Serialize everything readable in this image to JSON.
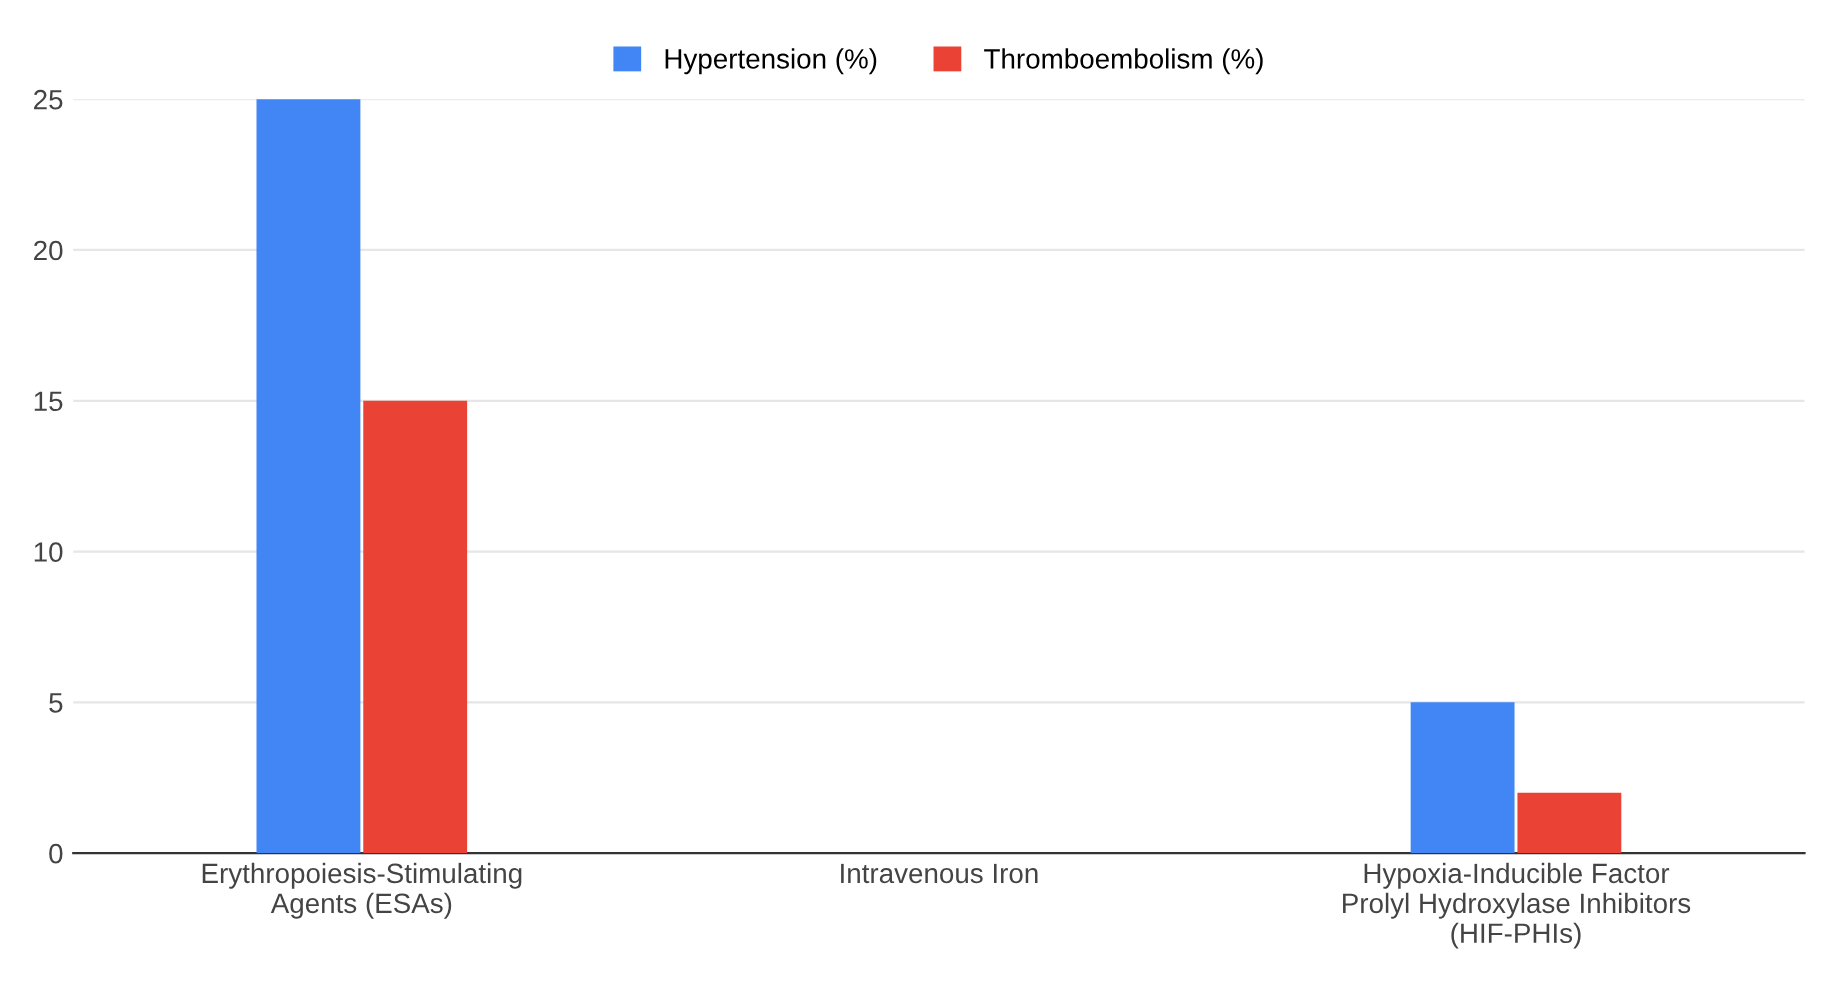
{
  "chart_data": {
    "type": "bar",
    "categories": [
      "Erythropoiesis-Stimulating\nAgents (ESAs)",
      "Intravenous Iron",
      "Hypoxia-Inducible Factor\nProlyl Hydroxylase Inhibitors\n(HIF-PHIs)"
    ],
    "series": [
      {
        "name": "Hypertension (%)",
        "color": "#4285f4",
        "values": [
          25,
          0,
          5
        ]
      },
      {
        "name": "Thromboembolism (%)",
        "color": "#ea4335",
        "values": [
          15,
          0,
          2
        ]
      }
    ],
    "ylim": [
      0,
      25
    ],
    "yticks": [
      0,
      5,
      10,
      15,
      20,
      25
    ],
    "grid": "y",
    "legend": "top"
  }
}
